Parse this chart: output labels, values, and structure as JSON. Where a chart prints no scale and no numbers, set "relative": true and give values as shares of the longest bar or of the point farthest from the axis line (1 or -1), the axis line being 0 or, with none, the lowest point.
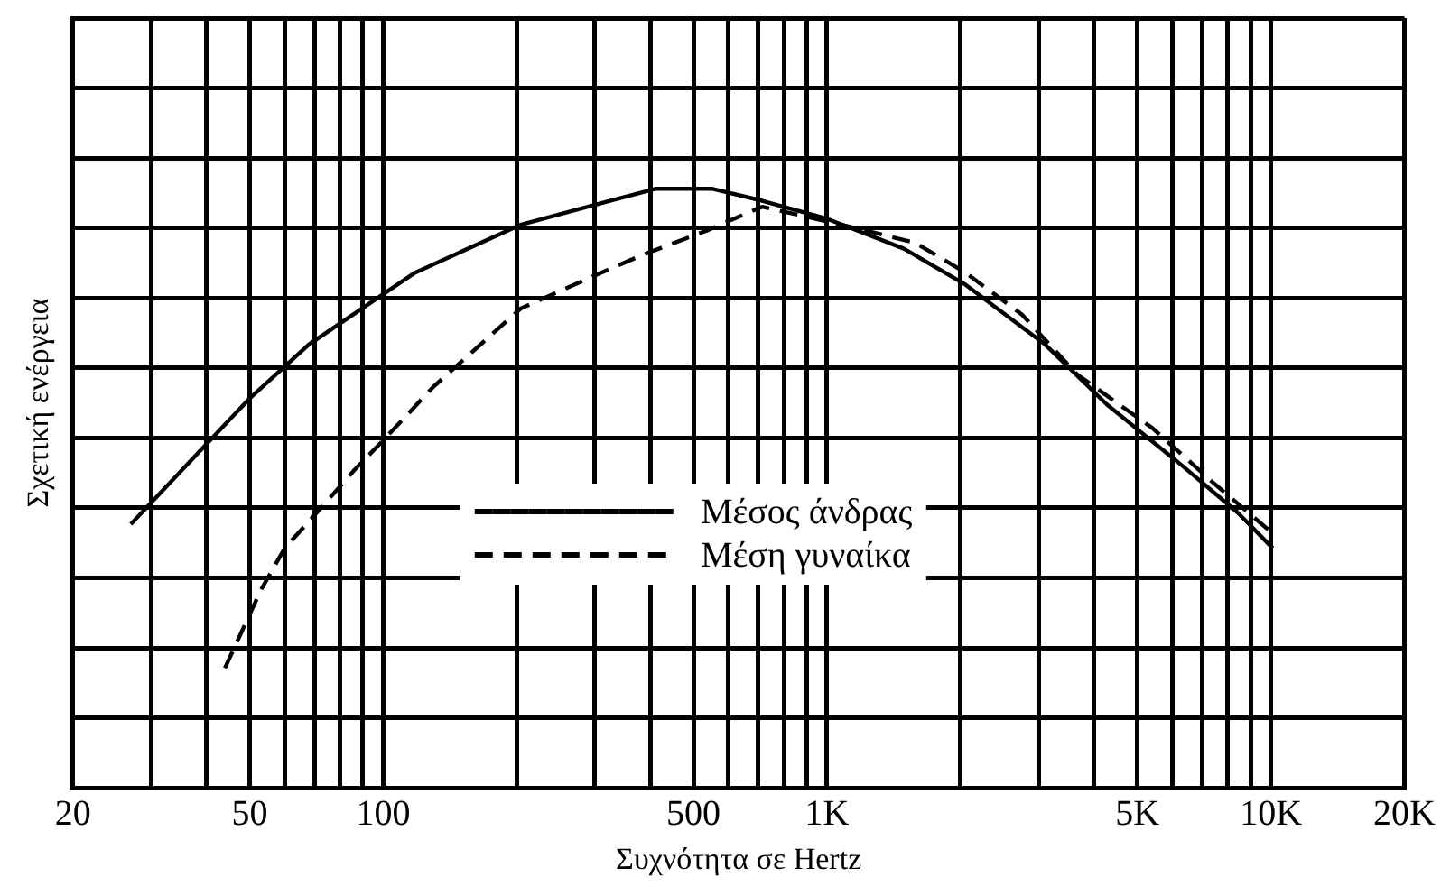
{
  "chart_data": {
    "type": "line",
    "relative": true,
    "log": "x",
    "grid": true,
    "legend": "center",
    "marker": "none",
    "xlabel": "Συχνότητα σε Hertz",
    "ylabel": "Σχετική ενέργεια",
    "xlim": [
      20,
      20000
    ],
    "xticks": [
      20,
      {
        "value": 30,
        "label": null
      },
      {
        "value": 40,
        "label": null
      },
      50,
      {
        "value": 60,
        "label": null
      },
      {
        "value": 70,
        "label": null
      },
      {
        "value": 80,
        "label": null
      },
      {
        "value": 90,
        "label": null
      },
      100,
      {
        "value": 200,
        "label": null
      },
      {
        "value": 300,
        "label": null
      },
      {
        "value": 400,
        "label": null
      },
      500,
      {
        "value": 600,
        "label": null
      },
      {
        "value": 700,
        "label": null
      },
      {
        "value": 800,
        "label": null
      },
      {
        "value": 900,
        "label": null
      },
      {
        "value": 1000,
        "label": "1K"
      },
      {
        "value": 2000,
        "label": null
      },
      {
        "value": 3000,
        "label": null
      },
      {
        "value": 4000,
        "label": null
      },
      {
        "value": 5000,
        "label": "5K"
      },
      {
        "value": 6000,
        "label": null
      },
      {
        "value": 7000,
        "label": null
      },
      {
        "value": 8000,
        "label": null
      },
      {
        "value": 9000,
        "label": null
      },
      {
        "value": 10000,
        "label": "10K"
      },
      {
        "value": 20000,
        "label": "20K"
      }
    ],
    "series": [
      {
        "name": "Μέσος άνδρας",
        "color": "#000000",
        "line_style": "solid",
        "x": [
          27,
          50,
          68,
          118,
          204,
          289,
          412,
          550,
          714,
          1000,
          1490,
          2050,
          3100,
          4270,
          6260,
          8400,
          10100
        ],
        "values": [
          0.44,
          0.65,
          0.74,
          0.86,
          0.94,
          0.97,
          1,
          1,
          0.98,
          0.95,
          0.9,
          0.84,
          0.74,
          0.64,
          0.54,
          0.46,
          0.4
        ]
      },
      {
        "name": "Μέση γυναίκα",
        "color": "#000000",
        "line_style": "dashed",
        "x": [
          44,
          53,
          60,
          73,
          86,
          100,
          130,
          204,
          289,
          385,
          535,
          714,
          1080,
          1580,
          2050,
          2750,
          3660,
          5420,
          7400,
          9900
        ],
        "values": [
          0.2,
          0.33,
          0.4,
          0.47,
          0.53,
          0.58,
          0.67,
          0.8,
          0.85,
          0.89,
          0.93,
          0.97,
          0.94,
          0.91,
          0.86,
          0.79,
          0.69,
          0.6,
          0.51,
          0.43
        ]
      }
    ]
  }
}
